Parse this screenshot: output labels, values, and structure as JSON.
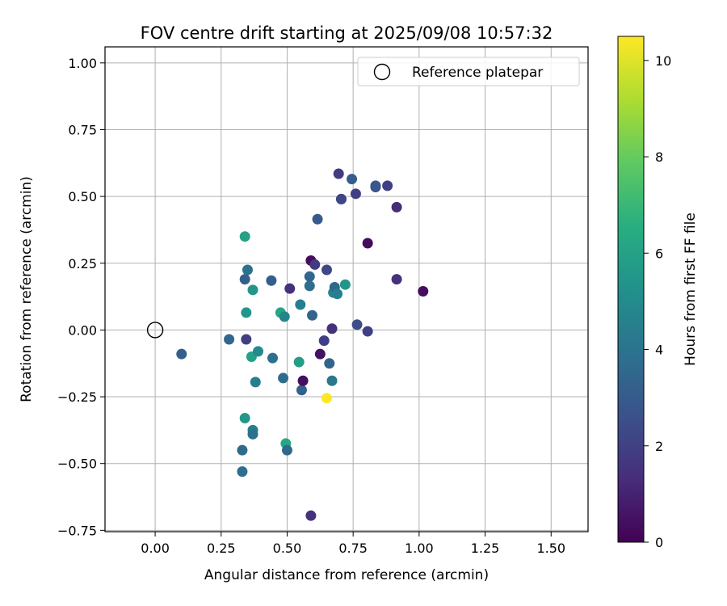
{
  "chart_data": {
    "type": "scatter",
    "title": "FOV centre drift starting at 2025/09/08 10:57:32",
    "xlabel": "Angular distance from reference (arcmin)",
    "ylabel": "Rotation from reference (arcmin)",
    "xlim": [
      -0.19,
      1.64
    ],
    "ylim": [
      -0.755,
      1.06
    ],
    "xticks": [
      0.0,
      0.25,
      0.5,
      0.75,
      1.0,
      1.25,
      1.5
    ],
    "xtick_labels": [
      "0.00",
      "0.25",
      "0.50",
      "0.75",
      "1.00",
      "1.25",
      "1.50"
    ],
    "yticks": [
      -0.75,
      -0.5,
      -0.25,
      0.0,
      0.25,
      0.5,
      0.75,
      1.0
    ],
    "ytick_labels": [
      "−0.75",
      "−0.50",
      "−0.25",
      "0.00",
      "0.25",
      "0.50",
      "0.75",
      "1.00"
    ],
    "grid": true,
    "legend": {
      "placement": "top-right",
      "label": "Reference platepar",
      "marker": "open-circle"
    },
    "reference_point": {
      "x": 0.0,
      "y": 0.0
    },
    "colorbar": {
      "label": "Hours from first FF file",
      "min": 0,
      "max": 10.5,
      "ticks": [
        0,
        2,
        4,
        6,
        8,
        10
      ],
      "tick_labels": [
        "0",
        "2",
        "4",
        "6",
        "8",
        "10"
      ],
      "colormap": "viridis"
    },
    "points": [
      {
        "x": 0.1,
        "y": -0.09,
        "hours": 3.2
      },
      {
        "x": 0.28,
        "y": -0.035,
        "hours": 3.5
      },
      {
        "x": 0.33,
        "y": -0.45,
        "hours": 3.7
      },
      {
        "x": 0.33,
        "y": -0.53,
        "hours": 3.8
      },
      {
        "x": 0.34,
        "y": 0.35,
        "hours": 6.0
      },
      {
        "x": 0.34,
        "y": 0.19,
        "hours": 3.2
      },
      {
        "x": 0.345,
        "y": 0.065,
        "hours": 5.5
      },
      {
        "x": 0.345,
        "y": -0.035,
        "hours": 2.0
      },
      {
        "x": 0.34,
        "y": -0.33,
        "hours": 5.6
      },
      {
        "x": 0.35,
        "y": 0.225,
        "hours": 4.0
      },
      {
        "x": 0.365,
        "y": -0.1,
        "hours": 6.0
      },
      {
        "x": 0.37,
        "y": -0.375,
        "hours": 4.5
      },
      {
        "x": 0.37,
        "y": -0.39,
        "hours": 4.0
      },
      {
        "x": 0.37,
        "y": 0.15,
        "hours": 5.5
      },
      {
        "x": 0.38,
        "y": -0.195,
        "hours": 4.5
      },
      {
        "x": 0.39,
        "y": -0.08,
        "hours": 5.0
      },
      {
        "x": 0.44,
        "y": 0.185,
        "hours": 3.2
      },
      {
        "x": 0.445,
        "y": -0.105,
        "hours": 3.9
      },
      {
        "x": 0.475,
        "y": 0.065,
        "hours": 6.3
      },
      {
        "x": 0.485,
        "y": -0.18,
        "hours": 3.7
      },
      {
        "x": 0.49,
        "y": 0.05,
        "hours": 4.8
      },
      {
        "x": 0.495,
        "y": -0.425,
        "hours": 6.3
      },
      {
        "x": 0.5,
        "y": -0.45,
        "hours": 3.6
      },
      {
        "x": 0.51,
        "y": 0.155,
        "hours": 1.5
      },
      {
        "x": 0.545,
        "y": -0.12,
        "hours": 5.8
      },
      {
        "x": 0.55,
        "y": 0.095,
        "hours": 4.5
      },
      {
        "x": 0.555,
        "y": -0.225,
        "hours": 3.3
      },
      {
        "x": 0.56,
        "y": -0.19,
        "hours": 0.4
      },
      {
        "x": 0.585,
        "y": 0.2,
        "hours": 3.5
      },
      {
        "x": 0.585,
        "y": 0.165,
        "hours": 3.8
      },
      {
        "x": 0.59,
        "y": 0.26,
        "hours": 0.3
      },
      {
        "x": 0.59,
        "y": -0.695,
        "hours": 1.5
      },
      {
        "x": 0.595,
        "y": 0.055,
        "hours": 3.4
      },
      {
        "x": 0.605,
        "y": 0.245,
        "hours": 1.8
      },
      {
        "x": 0.615,
        "y": 0.415,
        "hours": 3.0
      },
      {
        "x": 0.625,
        "y": -0.09,
        "hours": 0.5
      },
      {
        "x": 0.64,
        "y": -0.04,
        "hours": 2.0
      },
      {
        "x": 0.65,
        "y": 0.225,
        "hours": 2.3
      },
      {
        "x": 0.65,
        "y": -0.255,
        "hours": 10.5
      },
      {
        "x": 0.66,
        "y": -0.125,
        "hours": 3.4
      },
      {
        "x": 0.67,
        "y": 0.005,
        "hours": 1.5
      },
      {
        "x": 0.67,
        "y": -0.19,
        "hours": 4.2
      },
      {
        "x": 0.675,
        "y": 0.14,
        "hours": 4.8
      },
      {
        "x": 0.68,
        "y": 0.16,
        "hours": 3.6
      },
      {
        "x": 0.69,
        "y": 0.135,
        "hours": 4.5
      },
      {
        "x": 0.695,
        "y": 0.585,
        "hours": 1.8
      },
      {
        "x": 0.705,
        "y": 0.49,
        "hours": 2.8
      },
      {
        "x": 0.705,
        "y": 0.49,
        "hours": 2.2
      },
      {
        "x": 0.72,
        "y": 0.17,
        "hours": 5.5
      },
      {
        "x": 0.745,
        "y": 0.565,
        "hours": 3.2
      },
      {
        "x": 0.76,
        "y": 0.51,
        "hours": 2.0
      },
      {
        "x": 0.765,
        "y": 0.02,
        "hours": 2.5
      },
      {
        "x": 0.805,
        "y": 0.325,
        "hours": 0.3
      },
      {
        "x": 0.805,
        "y": -0.005,
        "hours": 2.0
      },
      {
        "x": 0.835,
        "y": 0.535,
        "hours": 2.5
      },
      {
        "x": 0.835,
        "y": 0.54,
        "hours": 2.9
      },
      {
        "x": 0.88,
        "y": 0.54,
        "hours": 2.0
      },
      {
        "x": 0.915,
        "y": 0.46,
        "hours": 1.3
      },
      {
        "x": 0.915,
        "y": 0.19,
        "hours": 1.5
      },
      {
        "x": 1.015,
        "y": 0.145,
        "hours": 0.4
      }
    ]
  }
}
